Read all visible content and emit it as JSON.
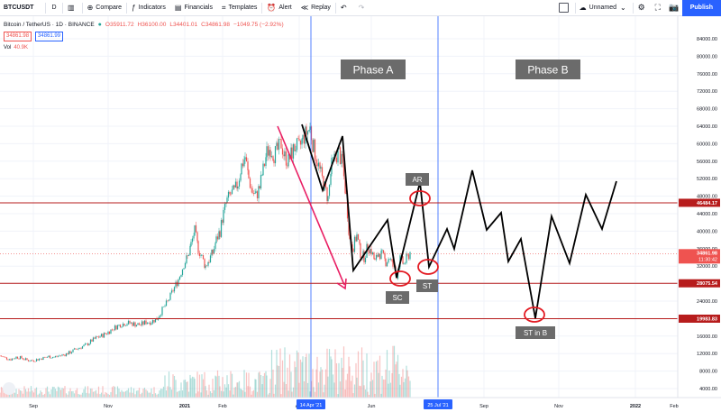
{
  "toolbar": {
    "symbol": "BTCUSDT",
    "interval": "D",
    "compare": "Compare",
    "indicators": "Indicators",
    "financials": "Financials",
    "templates": "Templates",
    "alert": "Alert",
    "replay": "Replay",
    "layout_name": "Unnamed",
    "publish": "Publish"
  },
  "legend": {
    "title": "Bitcoin / TetherUS · 1D · BINANCE",
    "open": "O35911.72",
    "high": "H36100.00",
    "low": "L34401.01",
    "close": "C34861.98",
    "change": "−1049.75 (−2.92%)",
    "bid": "34861.98",
    "ask": "34861.99",
    "vol_label": "Vol",
    "vol_value": "40.9K"
  },
  "colors": {
    "up": "#26a69a",
    "down": "#ef5350",
    "level_line": "#b71c1c",
    "accent": "#2962ff",
    "arrow": "#e91e63"
  },
  "annotations": {
    "phase_a": "Phase A",
    "phase_b": "Phase B",
    "ar": "AR",
    "sc": "SC",
    "st": "ST",
    "st_in_b": "ST in B"
  },
  "chart_data": {
    "type": "candlestick",
    "price_axis": {
      "min": 0,
      "max": 84000,
      "ticks": [
        "84000.00",
        "80000.00",
        "76000.00",
        "72000.00",
        "68000.00",
        "64000.00",
        "60000.00",
        "56000.00",
        "52000.00",
        "48000.00",
        "44000.00",
        "40000.00",
        "36000.00",
        "32000.00",
        "28000.00",
        "24000.00",
        "20000.00",
        "16000.00",
        "12000.00",
        "8000.00",
        "4000.00"
      ]
    },
    "time_axis": {
      "ticks": [
        "Sep",
        "Nov",
        "2021",
        "Feb",
        "Apr",
        "Jun",
        "Sep",
        "Nov",
        "2022",
        "Feb"
      ],
      "highlighted": [
        "14 Apr '21",
        "25 Jul '21"
      ]
    },
    "levels": [
      {
        "label": "46484.17",
        "value": 46484.17
      },
      {
        "label": "28075.54",
        "value": 28075.54
      },
      {
        "label": "19983.83",
        "value": 19983.83
      }
    ],
    "last_price": {
      "label": "34861.98",
      "countdown": "11:30:42",
      "value": 34861.98
    },
    "price_path": [
      [
        0,
        11500
      ],
      [
        6,
        11000
      ],
      [
        12,
        10700
      ],
      [
        18,
        11200
      ],
      [
        24,
        11000
      ],
      [
        30,
        10500
      ],
      [
        36,
        10400
      ],
      [
        42,
        10700
      ],
      [
        48,
        11000
      ],
      [
        54,
        11300
      ],
      [
        60,
        11200
      ],
      [
        66,
        11500
      ],
      [
        72,
        11800
      ],
      [
        78,
        12300
      ],
      [
        84,
        13000
      ],
      [
        90,
        13500
      ],
      [
        96,
        14000
      ],
      [
        102,
        15000
      ],
      [
        108,
        15700
      ],
      [
        114,
        16200
      ],
      [
        120,
        16900
      ],
      [
        126,
        17800
      ],
      [
        132,
        18500
      ],
      [
        138,
        18900
      ],
      [
        144,
        19000
      ],
      [
        150,
        18700
      ],
      [
        156,
        18600
      ],
      [
        162,
        19200
      ],
      [
        168,
        19300
      ],
      [
        174,
        20000
      ],
      [
        180,
        22000
      ],
      [
        186,
        23800
      ],
      [
        192,
        26500
      ],
      [
        198,
        29000
      ],
      [
        204,
        32500
      ],
      [
        208,
        34000
      ],
      [
        212,
        37000
      ],
      [
        216,
        40000
      ],
      [
        220,
        36000
      ],
      [
        224,
        34000
      ],
      [
        228,
        32000
      ],
      [
        232,
        33500
      ],
      [
        236,
        35000
      ],
      [
        240,
        38000
      ],
      [
        244,
        40000
      ],
      [
        248,
        44000
      ],
      [
        252,
        47000
      ],
      [
        256,
        48500
      ],
      [
        260,
        49000
      ],
      [
        264,
        51000
      ],
      [
        268,
        55000
      ],
      [
        272,
        57000
      ],
      [
        276,
        52000
      ],
      [
        280,
        49000
      ],
      [
        284,
        48000
      ],
      [
        288,
        50000
      ],
      [
        292,
        54000
      ],
      [
        296,
        58000
      ],
      [
        300,
        59000
      ],
      [
        304,
        57500
      ],
      [
        308,
        58500
      ],
      [
        312,
        60000
      ],
      [
        316,
        57000
      ],
      [
        320,
        56000
      ],
      [
        324,
        58000
      ],
      [
        328,
        59500
      ],
      [
        332,
        59000
      ],
      [
        336,
        61000
      ],
      [
        340,
        62500
      ],
      [
        344,
        63500
      ],
      [
        348,
        59000
      ],
      [
        352,
        56000
      ],
      [
        356,
        53000
      ],
      [
        360,
        50000
      ],
      [
        364,
        47500
      ],
      [
        368,
        55000
      ],
      [
        372,
        57000
      ],
      [
        376,
        58000
      ],
      [
        380,
        55000
      ],
      [
        384,
        48000
      ],
      [
        388,
        38000
      ],
      [
        392,
        36500
      ],
      [
        396,
        39000
      ],
      [
        400,
        35000
      ],
      [
        404,
        34000
      ],
      [
        408,
        36500
      ],
      [
        412,
        35500
      ],
      [
        416,
        33000
      ],
      [
        420,
        35000
      ],
      [
        424,
        34500
      ],
      [
        428,
        33000
      ],
      [
        432,
        34000
      ],
      [
        436,
        32000
      ],
      [
        440,
        30000
      ],
      [
        444,
        33500
      ],
      [
        448,
        32500
      ],
      [
        452,
        34000
      ],
      [
        456,
        35500
      ]
    ],
    "wyckoff_path_a": [
      [
        308,
        48
      ],
      [
        358,
        61
      ],
      [
        380,
        73
      ],
      [
        393,
        92
      ],
      [
        430,
        65
      ],
      [
        440,
        98
      ],
      [
        466,
        58
      ],
      [
        476,
        94
      ],
      [
        496,
        69
      ],
      [
        504,
        92
      ],
      [
        524,
        58
      ],
      [
        540,
        82
      ],
      [
        556,
        72
      ],
      [
        564,
        97
      ],
      [
        578,
        78
      ],
      [
        594,
        134
      ],
      [
        612,
        64
      ],
      [
        632,
        98
      ],
      [
        650,
        55
      ],
      [
        668,
        83
      ],
      [
        684,
        50
      ]
    ]
  }
}
